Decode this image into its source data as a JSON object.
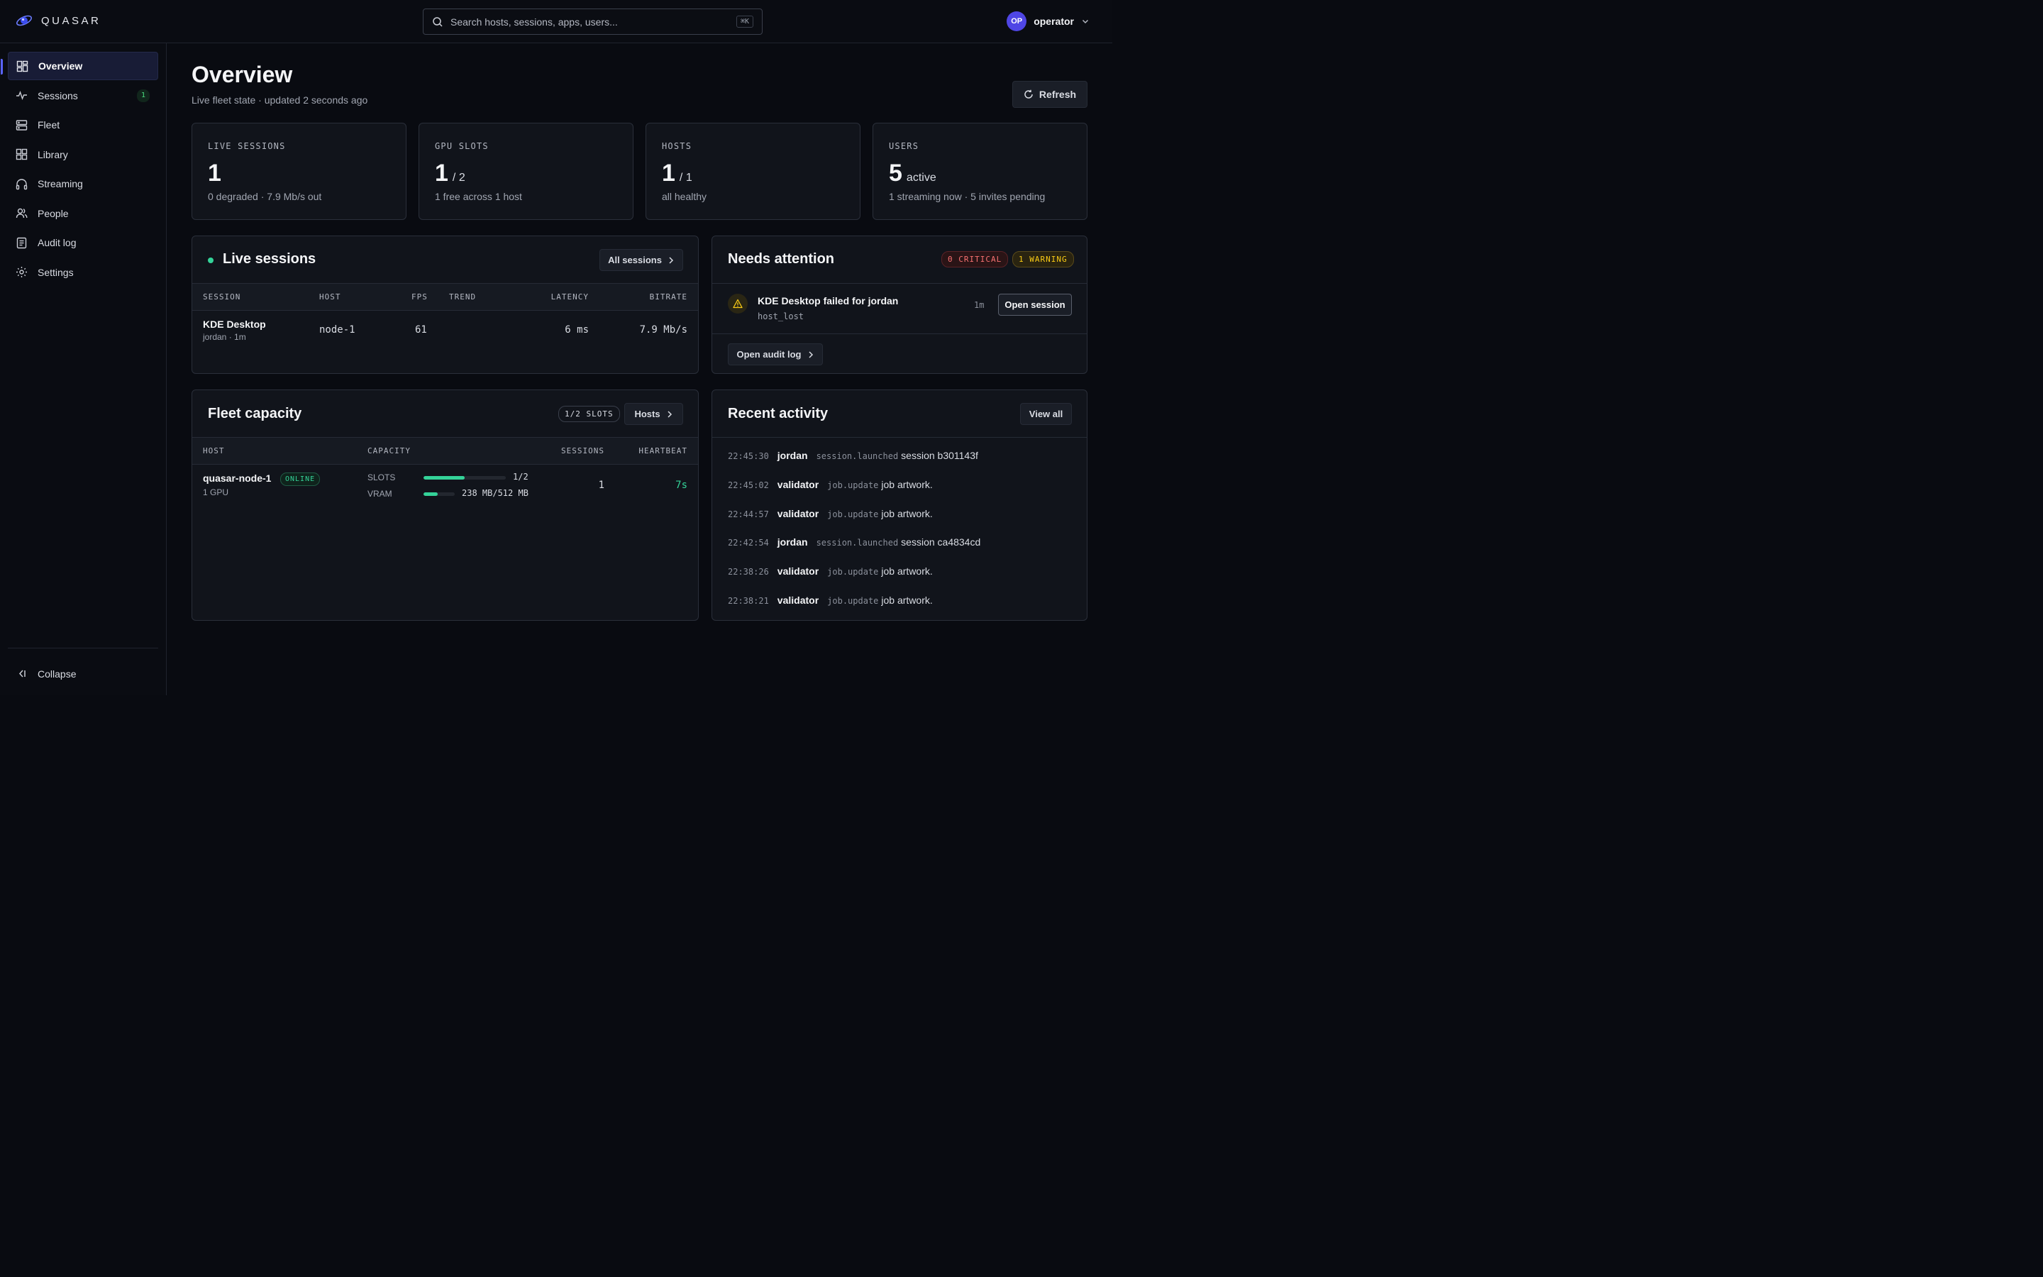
{
  "app": {
    "brand": "QUASAR"
  },
  "search": {
    "placeholder": "Search hosts, sessions, apps, users...",
    "shortcut": "⌘K"
  },
  "user": {
    "initials": "OP",
    "name": "operator"
  },
  "sidebar": {
    "items": [
      {
        "label": "Overview",
        "icon": "grid-icon",
        "active": true
      },
      {
        "label": "Sessions",
        "icon": "activity-icon",
        "badge": "1"
      },
      {
        "label": "Fleet",
        "icon": "server-icon"
      },
      {
        "label": "Library",
        "icon": "apps-icon"
      },
      {
        "label": "Streaming",
        "icon": "headphones-icon"
      },
      {
        "label": "People",
        "icon": "users-icon"
      },
      {
        "label": "Audit log",
        "icon": "document-icon"
      },
      {
        "label": "Settings",
        "icon": "gear-icon"
      }
    ],
    "collapse_label": "Collapse"
  },
  "header": {
    "title": "Overview",
    "subtitle": "Live fleet state · updated 2 seconds ago",
    "refresh_label": "Refresh"
  },
  "stats": [
    {
      "label": "LIVE SESSIONS",
      "value": "1",
      "suffix": "",
      "desc": "0 degraded · 7.9 Mb/s out"
    },
    {
      "label": "GPU SLOTS",
      "value": "1",
      "suffix": "/ 2",
      "desc": "1 free across 1 host"
    },
    {
      "label": "HOSTS",
      "value": "1",
      "suffix": "/ 1",
      "desc": "all healthy"
    },
    {
      "label": "USERS",
      "value": "5",
      "suffix": "active",
      "desc": "1 streaming now · 5 invites pending"
    }
  ],
  "live_sessions": {
    "title": "Live sessions",
    "button": "All sessions",
    "columns": [
      "SESSION",
      "HOST",
      "FPS",
      "TREND",
      "LATENCY",
      "BITRATE"
    ],
    "rows": [
      {
        "session": "KDE Desktop",
        "meta": "jordan · 1m",
        "host": "node-1",
        "fps": "61",
        "trend": "",
        "latency": "6 ms",
        "bitrate": "7.9 Mb/s"
      }
    ]
  },
  "attention": {
    "title": "Needs attention",
    "critical": "0 CRITICAL",
    "warning": "1 WARNING",
    "items": [
      {
        "title": "KDE Desktop failed for jordan",
        "code": "host_lost",
        "age": "1m",
        "action": "Open session"
      }
    ],
    "audit_button": "Open audit log"
  },
  "fleet": {
    "title": "Fleet capacity",
    "slots_pill": "1/2 SLOTS",
    "button": "Hosts",
    "columns": [
      "HOST",
      "CAPACITY",
      "SESSIONS",
      "HEARTBEAT"
    ],
    "rows": [
      {
        "host": "quasar-node-1",
        "status": "ONLINE",
        "gpu": "1 GPU",
        "slots_label": "SLOTS",
        "slots_value": "1/2",
        "slots_fraction": 0.5,
        "vram_label": "VRAM",
        "vram_value": "238 MB/512 MB",
        "vram_fraction": 0.465,
        "sessions": "1",
        "heartbeat": "7s"
      }
    ]
  },
  "activity": {
    "title": "Recent activity",
    "button": "View all",
    "items": [
      {
        "time": "22:45:30",
        "user": "jordan",
        "event": "session.launched",
        "text": "session b301143f"
      },
      {
        "time": "22:45:02",
        "user": "validator",
        "event": "job.update",
        "text": "job artwork."
      },
      {
        "time": "22:44:57",
        "user": "validator",
        "event": "job.update",
        "text": "job artwork."
      },
      {
        "time": "22:42:54",
        "user": "jordan",
        "event": "session.launched",
        "text": "session ca4834cd"
      },
      {
        "time": "22:38:26",
        "user": "validator",
        "event": "job.update",
        "text": "job artwork."
      },
      {
        "time": "22:38:21",
        "user": "validator",
        "event": "job.update",
        "text": "job artwork."
      }
    ]
  },
  "colors": {
    "accent": "#5a64ff",
    "success": "#34d399",
    "critical": "#f87171",
    "warning": "#facc15"
  }
}
